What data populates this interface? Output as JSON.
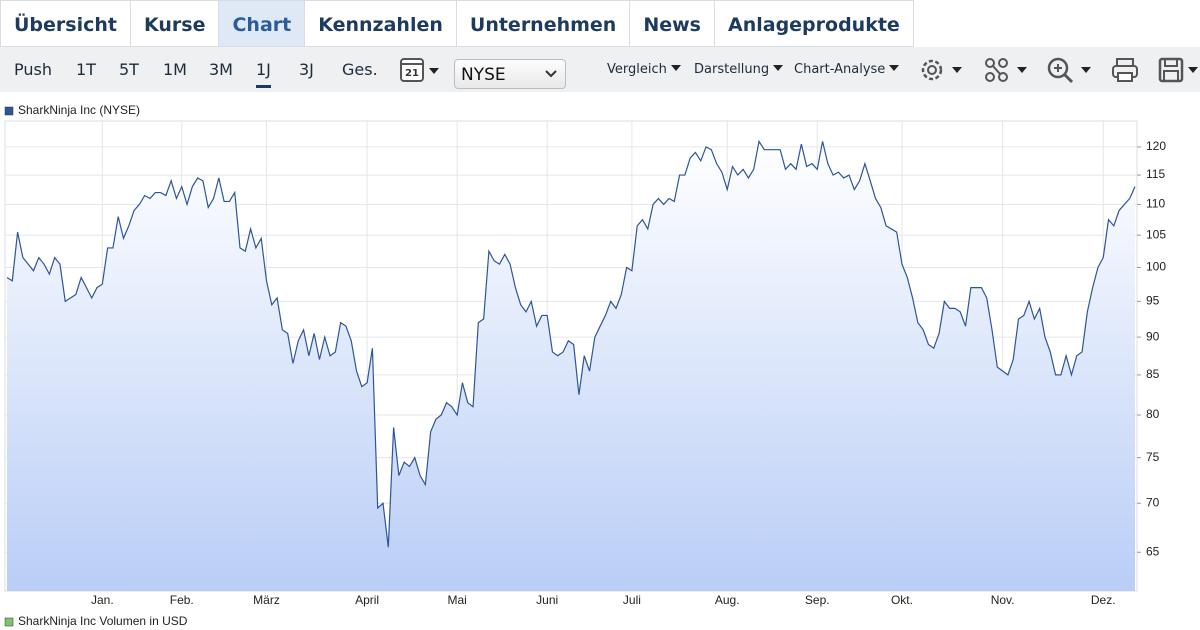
{
  "tabs": [
    "Übersicht",
    "Kurse",
    "Chart",
    "Kennzahlen",
    "Unternehmen",
    "News",
    "Anlageprodukte"
  ],
  "periods": [
    "Push",
    "1T",
    "5T",
    "1M",
    "3M",
    "1J",
    "3J",
    "Ges."
  ],
  "calendar_day": "21",
  "exchange": "NYSE",
  "menus": [
    "Vergleich",
    "Darstellung",
    "Chart-Analyse"
  ],
  "volume_legend": "SharkNinja Inc Volumen in USD",
  "chart_data": {
    "type": "line",
    "log_scale": true,
    "grid": true,
    "legend": "top-left",
    "fill_color": "#b9cdf6",
    "ylim": [
      61.3,
      124.8
    ],
    "yticks": [
      65,
      70,
      75,
      80,
      85,
      90,
      95,
      100,
      105,
      110,
      115,
      120
    ],
    "categories": [
      null,
      null,
      null,
      null,
      null,
      null,
      null,
      null,
      null,
      null,
      null,
      null,
      null,
      null,
      null,
      null,
      null,
      null,
      "Jan.",
      null,
      null,
      null,
      null,
      null,
      null,
      null,
      null,
      null,
      null,
      null,
      null,
      null,
      null,
      "Feb.",
      null,
      null,
      null,
      null,
      null,
      null,
      null,
      null,
      null,
      null,
      null,
      null,
      null,
      null,
      null,
      "März",
      null,
      null,
      null,
      null,
      null,
      null,
      null,
      null,
      null,
      null,
      null,
      null,
      null,
      null,
      null,
      null,
      null,
      null,
      "April",
      null,
      null,
      null,
      null,
      null,
      null,
      null,
      null,
      null,
      null,
      null,
      null,
      null,
      null,
      null,
      null,
      "Mai",
      null,
      null,
      null,
      null,
      null,
      null,
      null,
      null,
      null,
      null,
      null,
      null,
      null,
      null,
      null,
      null,
      "Juni",
      null,
      null,
      null,
      null,
      null,
      null,
      null,
      null,
      null,
      null,
      null,
      null,
      null,
      null,
      null,
      "Juli",
      null,
      null,
      null,
      null,
      null,
      null,
      null,
      null,
      null,
      null,
      null,
      null,
      null,
      null,
      null,
      null,
      null,
      "Aug.",
      null,
      null,
      null,
      null,
      null,
      null,
      null,
      null,
      null,
      null,
      null,
      null,
      null,
      null,
      null,
      null,
      "Sep.",
      null,
      null,
      null,
      null,
      null,
      null,
      null,
      null,
      null,
      null,
      null,
      null,
      null,
      null,
      null,
      "Okt.",
      null,
      null,
      null,
      null,
      null,
      null,
      null,
      null,
      null,
      null,
      null,
      null,
      null,
      null,
      null,
      null,
      null,
      null,
      "Nov.",
      null,
      null,
      null,
      null,
      null,
      null,
      null,
      null,
      null,
      null,
      null,
      null,
      null,
      null,
      null,
      null,
      null,
      null,
      "Dez.",
      null,
      null,
      null,
      null,
      null,
      null
    ],
    "series": [
      {
        "name": "SharkNinja Inc (NYSE)",
        "color": "#2e5597",
        "values": [
          98.5,
          98,
          105.5,
          101.5,
          100.5,
          99.5,
          101.5,
          100.5,
          99,
          101.5,
          100.5,
          95,
          95.5,
          96,
          98.5,
          97,
          95.5,
          97,
          97.5,
          103,
          103,
          108,
          104.5,
          106.5,
          109,
          110,
          111.5,
          111,
          112,
          112,
          111.5,
          114,
          111,
          113,
          110,
          113,
          114.5,
          114,
          109.5,
          111,
          114.5,
          110.5,
          110.5,
          112,
          103,
          102.5,
          106,
          103,
          104.5,
          98,
          94.5,
          95.5,
          91,
          90.5,
          86.5,
          89.5,
          91,
          87.5,
          90.5,
          87,
          90,
          87.5,
          88,
          92,
          91.5,
          89.5,
          85.5,
          83.5,
          84,
          88.5,
          69.5,
          70,
          65.5,
          78.5,
          73,
          74.5,
          74,
          75,
          73,
          72,
          78,
          79.5,
          80,
          81.5,
          81,
          80,
          84,
          81.5,
          81,
          92,
          92.5,
          102.5,
          101,
          100.5,
          102,
          100.5,
          97,
          94.5,
          93.5,
          95,
          91.5,
          93,
          93,
          88,
          87.5,
          88,
          89.5,
          89,
          82.5,
          87.5,
          85.5,
          90,
          91.5,
          93,
          95,
          94,
          96,
          100,
          99.5,
          106.5,
          107.5,
          106,
          110,
          111,
          110,
          111,
          110.5,
          115,
          115,
          118,
          119,
          117.5,
          120,
          119.5,
          117,
          115.5,
          112.5,
          116.5,
          115,
          116,
          114.5,
          116,
          121,
          119.5,
          119.5,
          119.5,
          119.5,
          116,
          117,
          116,
          120.5,
          116.5,
          117,
          116,
          121,
          117,
          115,
          115.5,
          114.5,
          115,
          112.5,
          114,
          117,
          114,
          111,
          109.5,
          106.5,
          106,
          105.5,
          100.5,
          98.5,
          95.5,
          92,
          91,
          89,
          88.5,
          90.5,
          95,
          94,
          94,
          93.5,
          91.5,
          97,
          97,
          97,
          95.5,
          91,
          86,
          85.5,
          85,
          87,
          92.5,
          93,
          95,
          92.5,
          94,
          90,
          88,
          85,
          85,
          87.5,
          85,
          87.5,
          88,
          93.5,
          97,
          100,
          101.5,
          107.5,
          106.5,
          109,
          110,
          111,
          113
        ]
      }
    ]
  }
}
